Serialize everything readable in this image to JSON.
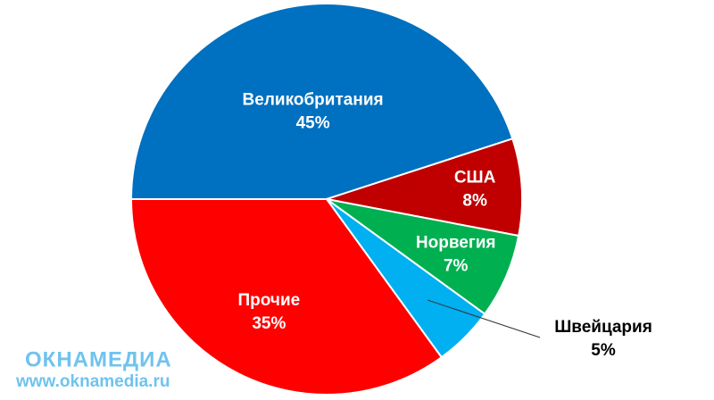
{
  "chart_data": {
    "type": "pie",
    "categories": [
      "Великобритания",
      "США",
      "Норвегия",
      "Швейцария",
      "Прочие"
    ],
    "values": [
      45,
      8,
      7,
      5,
      35
    ],
    "value_labels": [
      "45%",
      "8%",
      "7%",
      "5%",
      "35%"
    ],
    "colors": [
      "#0070c0",
      "#c00000",
      "#00b050",
      "#00b0f0",
      "#ff0000"
    ]
  },
  "watermark": {
    "logo": "ОКНАМЕДИА",
    "url": "www.oknamedia.ru"
  }
}
